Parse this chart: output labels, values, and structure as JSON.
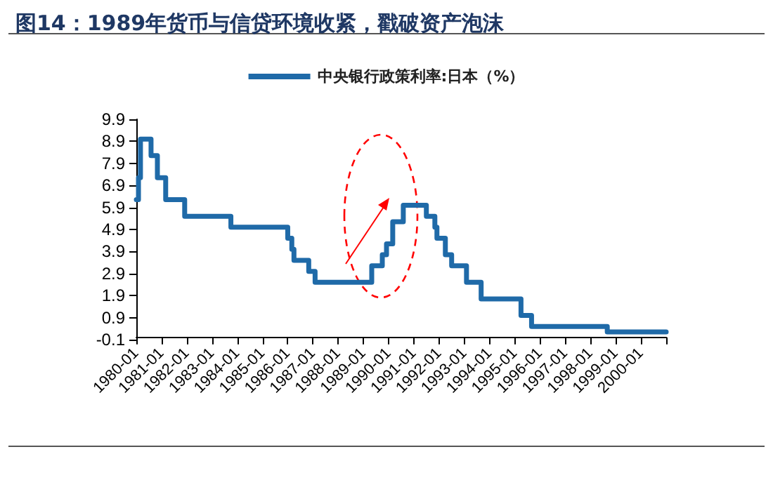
{
  "chart_data": {
    "type": "step",
    "title": "图14：1989年货币与信贷环境收紧，戳破资产泡沫",
    "x": [
      "1980-01",
      "1980-02",
      "1980-03",
      "1980-08",
      "1980-11",
      "1981-03",
      "1981-12",
      "1983-10",
      "1986-01",
      "1986-03",
      "1986-04",
      "1986-11",
      "1987-02",
      "1989-05",
      "1989-10",
      "1989-12",
      "1990-03",
      "1990-08",
      "1991-07",
      "1991-11",
      "1991-12",
      "1992-04",
      "1992-07",
      "1993-02",
      "1993-09",
      "1995-04",
      "1995-09",
      "1998-09",
      "2001-01"
    ],
    "series": [
      {
        "name": "中央银行政策利率:日本（%）",
        "color": "#1f6aa8",
        "values": [
          6.25,
          7.25,
          9.0,
          8.25,
          7.25,
          6.25,
          5.5,
          5.0,
          4.5,
          4.0,
          3.5,
          3.0,
          2.5,
          3.25,
          3.75,
          4.25,
          5.25,
          6.0,
          5.5,
          5.0,
          4.5,
          3.75,
          3.25,
          2.5,
          1.75,
          1.0,
          0.5,
          0.25,
          0.25
        ]
      }
    ],
    "xlim": [
      "1980-01",
      "2001-01"
    ],
    "xticks": [
      {
        "value": "1980-01",
        "label": "1980-01"
      },
      {
        "value": "1981-01",
        "label": "1981-01"
      },
      {
        "value": "1982-01",
        "label": "1982-01"
      },
      {
        "value": "1983-01",
        "label": "1983-01"
      },
      {
        "value": "1984-01",
        "label": "1984-01"
      },
      {
        "value": "1985-01",
        "label": "1985-01"
      },
      {
        "value": "1986-01",
        "label": "1986-01"
      },
      {
        "value": "1987-01",
        "label": "1987-01"
      },
      {
        "value": "1988-01",
        "label": "1988-01"
      },
      {
        "value": "1989-01",
        "label": "1989-01"
      },
      {
        "value": "1990-01",
        "label": "1990-01"
      },
      {
        "value": "1991-01",
        "label": "1991-01"
      },
      {
        "value": "1992-01",
        "label": "1992-01"
      },
      {
        "value": "1993-01",
        "label": "1993-01"
      },
      {
        "value": "1994-01",
        "label": "1994-01"
      },
      {
        "value": "1995-01",
        "label": "1995-01"
      },
      {
        "value": "1996-01",
        "label": "1996-01"
      },
      {
        "value": "1997-01",
        "label": "1997-01"
      },
      {
        "value": "1998-01",
        "label": "1998-01"
      },
      {
        "value": "1999-01",
        "label": "1999-01"
      },
      {
        "value": "2000-01",
        "label": "2000-01"
      },
      {
        "value": "2001-01",
        "label": null
      }
    ],
    "ylim": [
      -0.1,
      9.9
    ],
    "yticks": [
      -0.1,
      0.9,
      1.9,
      2.9,
      3.9,
      4.9,
      5.9,
      6.9,
      7.9,
      8.9,
      9.9
    ],
    "grid": false,
    "legend": "top",
    "marker": "none",
    "line_style": "solid"
  }
}
